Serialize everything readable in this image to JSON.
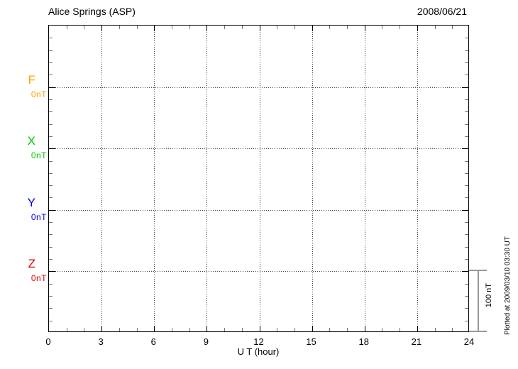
{
  "header": {
    "title": "Alice Springs (ASP)",
    "date": "2008/06/21"
  },
  "chart_data": {
    "type": "line",
    "title": "Alice Springs (ASP)",
    "subtitle_date": "2008/06/21",
    "xlabel": "U T (hour)",
    "xlim": [
      0,
      24
    ],
    "x_ticks": [
      0,
      3,
      6,
      9,
      12,
      15,
      18,
      21,
      24
    ],
    "x_minor_step_hours": 1,
    "x_grid_step_hours": 3,
    "y_scale_per_division_nT": 100,
    "y_minor_divisions_per_major": 5,
    "grid": "dotted",
    "legend_position": "left-margin",
    "series": [
      {
        "name": "F",
        "baseline_label": "0nT",
        "baseline_nT": 0,
        "color": "#FFA500",
        "values": []
      },
      {
        "name": "X",
        "baseline_label": "0nT",
        "baseline_nT": 0,
        "color": "#00CC00",
        "values": []
      },
      {
        "name": "Y",
        "baseline_label": "0nT",
        "baseline_nT": 0,
        "color": "#0000DD",
        "values": []
      },
      {
        "name": "Z",
        "baseline_label": "0nT",
        "baseline_nT": 0,
        "color": "#DD0000",
        "values": []
      }
    ],
    "scale_bar": {
      "label": "100 nT",
      "value_nT": 100
    },
    "note": "Plotted at 2009/03/10 03:30 UT",
    "colors": {
      "axis": "#000000",
      "grid_dots": "#444444",
      "minor_tick": "#777777",
      "scale_bar": "#999999",
      "background": "#ffffff"
    }
  }
}
